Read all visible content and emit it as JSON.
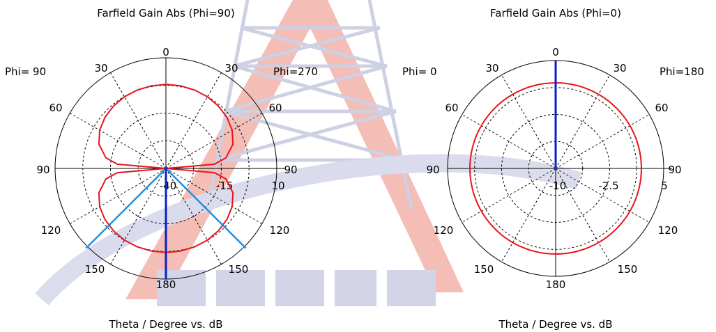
{
  "chart_data": [
    {
      "type": "polar-line",
      "title": "Farfield Gain Abs (Phi=90)",
      "xlabel": "Theta / Degree vs. dB",
      "phi_left_label": "Phi= 90",
      "phi_right_label": "Phi=270",
      "angle_labels": {
        "top": "0",
        "upper_left": "30",
        "upper_right": "30",
        "mid_left_high": "60",
        "mid_right_high": "60",
        "left": "90",
        "right": "90",
        "mid_left_low": "120",
        "mid_right_low": "120",
        "lower_left": "150",
        "lower_right": "150",
        "bottom": "180"
      },
      "radial_tick_labels": [
        "-40",
        "-15",
        "10"
      ],
      "r_range_db": [
        -40,
        10
      ],
      "series": [
        {
          "color": "#e8141b",
          "theta_deg": [
            0,
            10,
            20,
            30,
            40,
            50,
            60,
            70,
            80,
            85,
            90,
            95,
            100,
            110,
            120,
            130,
            140,
            150,
            160,
            170,
            180
          ],
          "gain_db": [
            -2.0,
            -2.1,
            -2.3,
            -2.6,
            -3.2,
            -4.1,
            -5.5,
            -7.8,
            -12.5,
            -18.0,
            -40.0,
            -18.0,
            -12.5,
            -7.8,
            -5.5,
            -4.1,
            -3.2,
            -2.6,
            -2.3,
            -2.1,
            -2.0
          ]
        }
      ],
      "markers": [
        {
          "color": "#0a1fc7",
          "theta_deg": 180
        },
        {
          "color": "#1f8ee8",
          "theta_deg": 135
        },
        {
          "color": "#1f8ee8",
          "theta_deg": 225
        }
      ]
    },
    {
      "type": "polar-line",
      "title": "Farfield Gain Abs (Phi=0)",
      "xlabel": "Theta / Degree vs. dB",
      "phi_left_label": "Phi=  0",
      "phi_right_label": "Phi=180",
      "angle_labels": {
        "top": "0",
        "upper_left": "30",
        "upper_right": "30",
        "mid_left_high": "60",
        "mid_right_high": "60",
        "left": "90",
        "right": "90",
        "mid_left_low": "120",
        "mid_right_low": "120",
        "lower_left": "150",
        "lower_right": "150",
        "bottom": "180"
      },
      "radial_tick_labels": [
        "-10",
        "-2.5",
        "5"
      ],
      "r_range_db": [
        -10,
        5
      ],
      "series": [
        {
          "color": "#e8141b",
          "theta_deg": [
            0,
            30,
            60,
            90,
            120,
            150,
            180
          ],
          "gain_db": [
            1.9,
            1.9,
            1.9,
            1.9,
            1.9,
            1.9,
            1.9
          ]
        }
      ],
      "markers": [
        {
          "color": "#0a1fc7",
          "theta_deg": 0
        }
      ]
    }
  ]
}
